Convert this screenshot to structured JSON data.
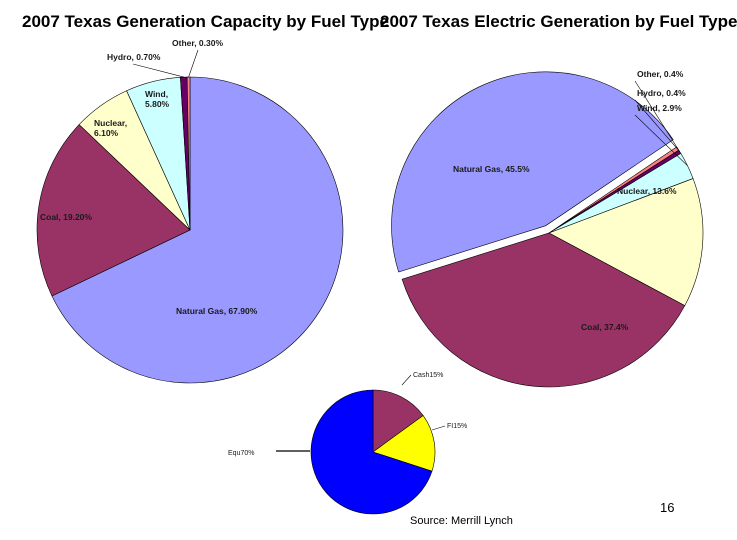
{
  "page": {
    "page_number": "16",
    "source": "Source:  Merrill Lynch"
  },
  "colors": {
    "natural_gas": "#9999FF",
    "coal": "#993366",
    "nuclear": "#FFFFCC",
    "wind": "#CCFFFF",
    "hydro": "#660066",
    "other": "#FF8080",
    "cash": "#993366",
    "fi": "#FFFF00",
    "equ": "#0000FF"
  },
  "chart_data": [
    {
      "type": "pie",
      "title": "2007 Texas Generation Capacity by Fuel Type",
      "slices": [
        {
          "key": "other",
          "name": "Other",
          "value": 0.3,
          "label": "Other, 0.30%"
        },
        {
          "key": "natural_gas",
          "name": "Natural Gas",
          "value": 67.9,
          "label": "Natural Gas, 67.90%"
        },
        {
          "key": "coal",
          "name": "Coal",
          "value": 19.2,
          "label": "Coal, 19.20%"
        },
        {
          "key": "nuclear",
          "name": "Nuclear",
          "value": 6.1,
          "label": "Nuclear, 6.10%"
        },
        {
          "key": "wind",
          "name": "Wind",
          "value": 5.8,
          "label": "Wind, 5.80%"
        },
        {
          "key": "hydro",
          "name": "Hydro",
          "value": 0.7,
          "label": "Hydro, 0.70%"
        }
      ]
    },
    {
      "type": "pie",
      "title": "2007 Texas Electric Generation by Fuel Type",
      "slices": [
        {
          "key": "other",
          "name": "Other",
          "value": 0.4,
          "label": "Other, 0.4%"
        },
        {
          "key": "hydro",
          "name": "Hydro",
          "value": 0.4,
          "label": "Hydro, 0.4%"
        },
        {
          "key": "wind",
          "name": "Wind",
          "value": 2.9,
          "label": "Wind, 2.9%"
        },
        {
          "key": "nuclear",
          "name": "Nuclear",
          "value": 13.6,
          "label": "Nuclear, 13.6%"
        },
        {
          "key": "coal",
          "name": "Coal",
          "value": 37.4,
          "label": "Coal, 37.4%"
        },
        {
          "key": "natural_gas",
          "name": "Natural Gas",
          "value": 45.5,
          "label": "Natural Gas, 45.5%"
        }
      ]
    },
    {
      "type": "pie",
      "title": "",
      "slices": [
        {
          "key": "cash",
          "name": "Cash",
          "value": 15,
          "label": "Cash15%"
        },
        {
          "key": "fi",
          "name": "FI",
          "value": 15,
          "label": "FI15%"
        },
        {
          "key": "equ",
          "name": "Equ",
          "value": 70,
          "label": "Equ70%"
        }
      ]
    }
  ]
}
